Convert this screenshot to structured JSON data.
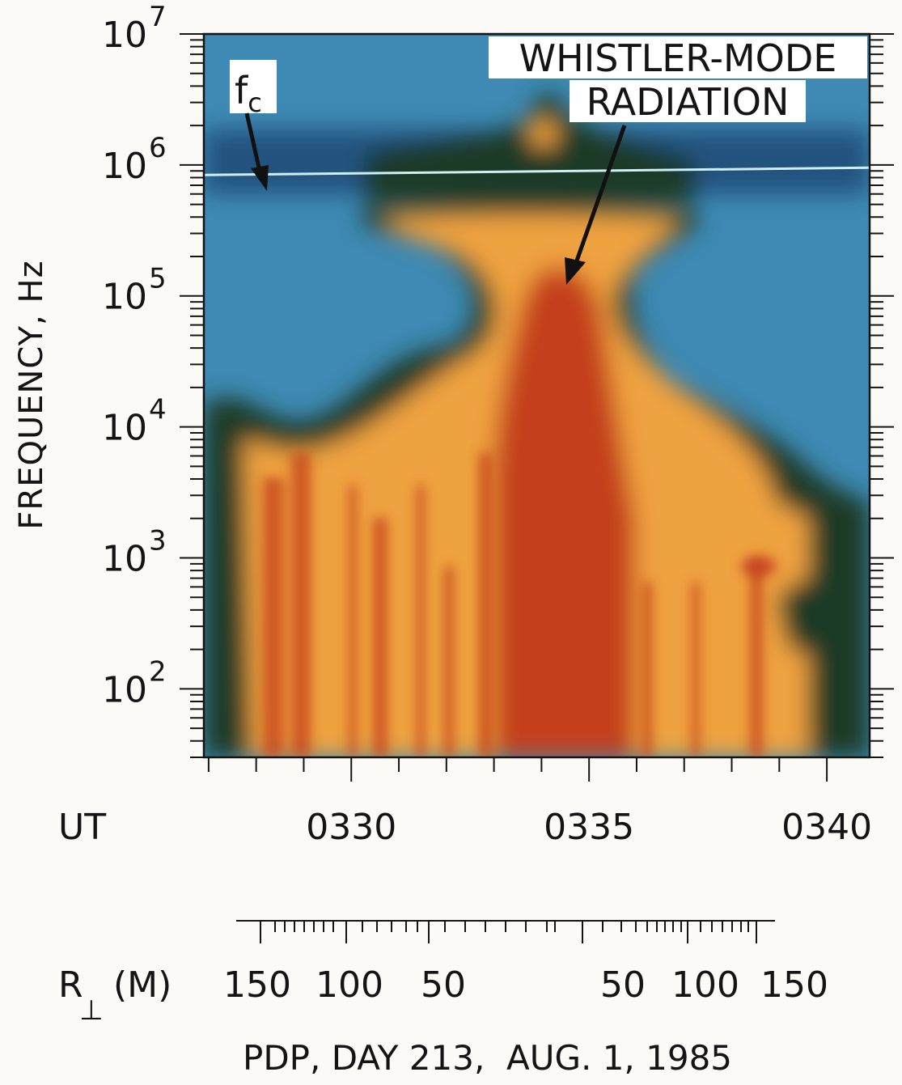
{
  "chart_data": {
    "type": "heatmap",
    "ylabel": "FREQUENCY, Hz",
    "yscale": "log",
    "ylim": [
      30,
      10000000
    ],
    "yticks": [
      {
        "base": "10",
        "exp": "2",
        "value": 100
      },
      {
        "base": "10",
        "exp": "3",
        "value": 1000
      },
      {
        "base": "10",
        "exp": "4",
        "value": 10000
      },
      {
        "base": "10",
        "exp": "5",
        "value": 100000
      },
      {
        "base": "10",
        "exp": "6",
        "value": 1000000
      },
      {
        "base": "10",
        "exp": "7",
        "value": 10000000
      }
    ],
    "xlabel": "UT",
    "xlim": [
      206.9,
      220.9
    ],
    "xticks": [
      {
        "label": "0330",
        "minutes_after_0300": 210
      },
      {
        "label": "0335",
        "minutes_after_0300": 215
      },
      {
        "label": "0340",
        "minutes_after_0300": 220
      }
    ],
    "fc_label": "f",
    "fc_subscript": "c",
    "fc_hz": 900000,
    "annotation": "WHISTLER-MODE RADIATION",
    "annotation_lines": [
      "WHISTLER-MODE",
      "RADIATION"
    ],
    "secondary_axis": {
      "label_main": "R",
      "label_sub": "⊥",
      "label_unit": "(M)",
      "ticks": [
        "150",
        "100",
        "50",
        "50",
        "100",
        "150"
      ]
    },
    "caption": "PDP, DAY 213,  AUG. 1, 1985",
    "colors": {
      "background_blue": "#3e8ab4",
      "dark_blue": "#24527f",
      "boundary_dark": "#1c3a26",
      "orange": "#efa240",
      "red": "#c4401e",
      "fc_line": "#cdeff5"
    }
  }
}
